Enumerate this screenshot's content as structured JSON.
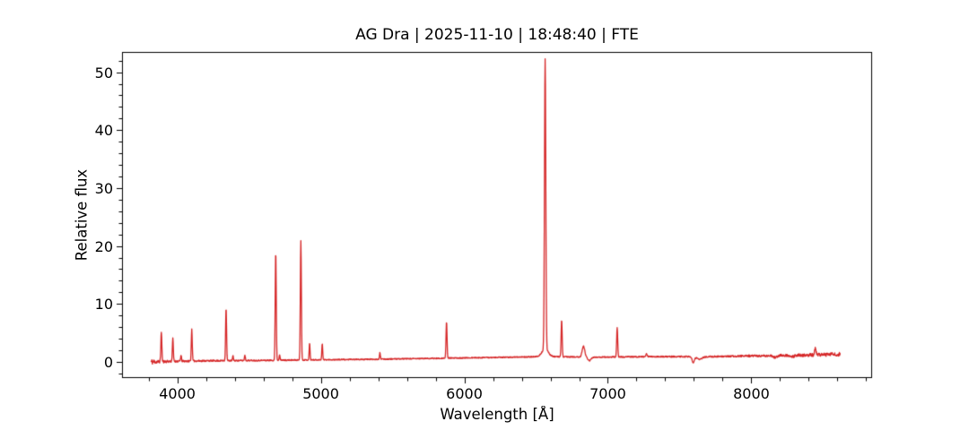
{
  "chart_data": {
    "type": "line",
    "title": "AG Dra | 2025-11-10 | 18:48:40 | FTE",
    "xlabel": "Wavelength [Å]",
    "ylabel": "Relative flux",
    "line_color": "#d62728",
    "axis_color": "#000000",
    "background_color": "#ffffff",
    "legend": "none",
    "grid": false,
    "xlim": [
      3615,
      8841
    ],
    "ylim": [
      -2.8,
      53.5
    ],
    "x_ticks": [
      4000,
      5000,
      6000,
      7000,
      8000
    ],
    "x_minor_step": 200,
    "y_ticks": [
      0,
      10,
      20,
      30,
      40,
      50
    ],
    "y_minor_step": 2,
    "x_range_data": [
      3815,
      8620
    ],
    "sample_step": 2,
    "noise_seed": 11,
    "continuum": [
      [
        3815,
        0.0
      ],
      [
        3900,
        0.05
      ],
      [
        4200,
        0.18
      ],
      [
        4600,
        0.25
      ],
      [
        5000,
        0.35
      ],
      [
        5400,
        0.45
      ],
      [
        5800,
        0.6
      ],
      [
        6200,
        0.75
      ],
      [
        6560,
        0.9
      ],
      [
        6900,
        0.8
      ],
      [
        7300,
        0.9
      ],
      [
        7700,
        0.9
      ],
      [
        8100,
        1.05
      ],
      [
        8450,
        1.2
      ],
      [
        8620,
        1.3
      ]
    ],
    "noise_level": [
      [
        3815,
        0.5
      ],
      [
        3870,
        0.3
      ],
      [
        3950,
        0.18
      ],
      [
        4300,
        0.12
      ],
      [
        5000,
        0.1
      ],
      [
        6000,
        0.09
      ],
      [
        7000,
        0.1
      ],
      [
        7800,
        0.13
      ],
      [
        8100,
        0.2
      ],
      [
        8400,
        0.28
      ],
      [
        8620,
        0.33
      ]
    ],
    "emission_lines": [
      {
        "wavelength": 3889,
        "peak_flux": 5.2,
        "sigma": 3.3
      },
      {
        "wavelength": 3969,
        "peak_flux": 4.0,
        "sigma": 3.3
      },
      {
        "wavelength": 4026,
        "peak_flux": 1.1,
        "sigma": 3.0
      },
      {
        "wavelength": 4101,
        "peak_flux": 5.6,
        "sigma": 3.3
      },
      {
        "wavelength": 4340,
        "peak_flux": 9.4,
        "sigma": 3.3
      },
      {
        "wavelength": 4388,
        "peak_flux": 1.0,
        "sigma": 3.0
      },
      {
        "wavelength": 4471,
        "peak_flux": 1.2,
        "sigma": 3.0
      },
      {
        "wavelength": 4686,
        "peak_flux": 19.0,
        "sigma": 3.5
      },
      {
        "wavelength": 4713,
        "peak_flux": 1.3,
        "sigma": 3.0
      },
      {
        "wavelength": 4861,
        "peak_flux": 21.0,
        "sigma": 3.5
      },
      {
        "wavelength": 4922,
        "peak_flux": 3.2,
        "sigma": 3.0
      },
      {
        "wavelength": 5010,
        "peak_flux": 3.2,
        "sigma": 3.0
      },
      {
        "wavelength": 5412,
        "peak_flux": 1.6,
        "sigma": 3.0
      },
      {
        "wavelength": 5876,
        "peak_flux": 6.9,
        "sigma": 3.5
      },
      {
        "wavelength": 6563,
        "peak_flux": 51.0,
        "sigma": 4.5
      },
      {
        "wavelength": 6563,
        "peak_flux": 2.2,
        "sigma": 22
      },
      {
        "wavelength": 6678,
        "peak_flux": 7.3,
        "sigma": 3.5
      },
      {
        "wavelength": 6830,
        "peak_flux": 2.7,
        "sigma": 9
      },
      {
        "wavelength": 7065,
        "peak_flux": 5.9,
        "sigma": 3.5
      },
      {
        "wavelength": 7270,
        "peak_flux": 1.4,
        "sigma": 4
      },
      {
        "wavelength": 8446,
        "peak_flux": 2.3,
        "sigma": 5
      }
    ],
    "absorption_bands": [
      {
        "wavelength": 6872,
        "depth": 0.6,
        "sigma": 11
      },
      {
        "wavelength": 7595,
        "depth": 1.05,
        "sigma": 8
      },
      {
        "wavelength": 7640,
        "depth": 0.45,
        "sigma": 18
      },
      {
        "wavelength": 8165,
        "depth": 0.32,
        "sigma": 14
      },
      {
        "wavelength": 8290,
        "depth": 0.25,
        "sigma": 12
      }
    ]
  }
}
